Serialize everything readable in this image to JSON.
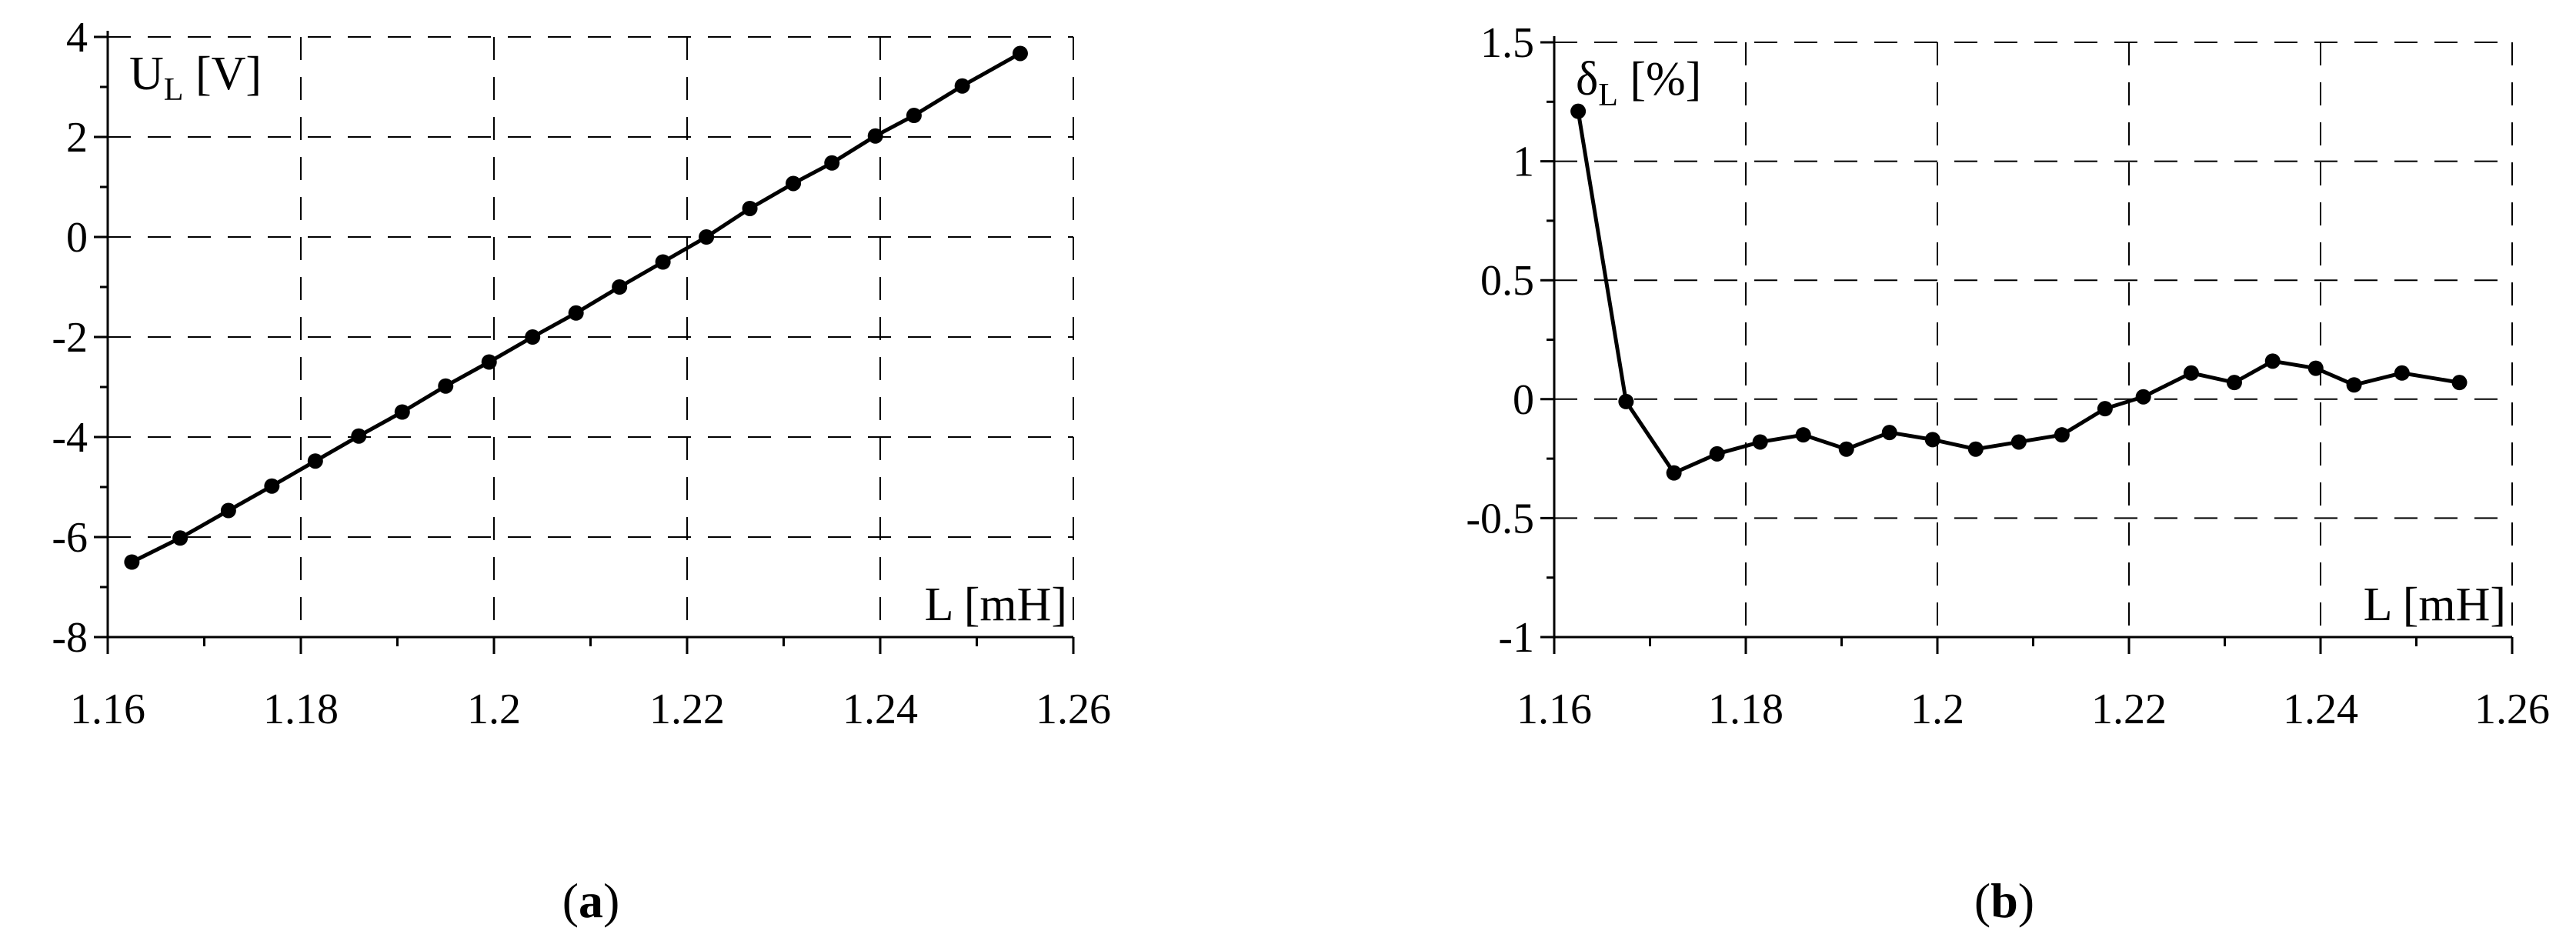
{
  "chart_data": [
    {
      "type": "line",
      "caption_letter": "a",
      "ylabel_main": "U",
      "ylabel_sub": "L",
      "ylabel_unit": " [V]",
      "xlabel": "L [mH]",
      "xlim": [
        1.16,
        1.26
      ],
      "ylim": [
        -8,
        4
      ],
      "xticks": [
        "1.16",
        "1.18",
        "1.2",
        "1.22",
        "1.24",
        "1.26"
      ],
      "yticks": [
        "4",
        "2",
        "0",
        "-2",
        "-4",
        "-6",
        "-8"
      ],
      "grid": true,
      "x": [
        1.1625,
        1.1675,
        1.1725,
        1.177,
        1.1815,
        1.186,
        1.1905,
        1.195,
        1.1995,
        1.204,
        1.2085,
        1.213,
        1.2175,
        1.222,
        1.2265,
        1.231,
        1.235,
        1.2395,
        1.2435,
        1.2485,
        1.2545
      ],
      "values": [
        -6.5,
        -6.02,
        -5.47,
        -4.98,
        -4.48,
        -3.98,
        -3.5,
        -2.98,
        -2.5,
        -2.0,
        -1.52,
        -1.0,
        -0.5,
        0.0,
        0.57,
        1.07,
        1.48,
        2.02,
        2.43,
        3.02,
        3.67
      ]
    },
    {
      "type": "line",
      "caption_letter": "b",
      "ylabel_main": "δ",
      "ylabel_sub": "L",
      "ylabel_unit": " [%]",
      "xlabel": "L [mH]",
      "xlim": [
        1.16,
        1.26
      ],
      "ylim": [
        -1,
        1.5
      ],
      "xticks": [
        "1.16",
        "1.18",
        "1.2",
        "1.22",
        "1.24",
        "1.26"
      ],
      "yticks": [
        "1.5",
        "1",
        "0.5",
        "0",
        "-0.5",
        "-1"
      ],
      "grid": true,
      "x": [
        1.1625,
        1.1675,
        1.1725,
        1.177,
        1.1815,
        1.186,
        1.1905,
        1.195,
        1.1995,
        1.204,
        1.2085,
        1.213,
        1.2175,
        1.2215,
        1.2265,
        1.231,
        1.235,
        1.2395,
        1.2435,
        1.2485,
        1.2545
      ],
      "values": [
        1.21,
        -0.01,
        -0.31,
        -0.23,
        -0.18,
        -0.15,
        -0.21,
        -0.14,
        -0.17,
        -0.21,
        -0.18,
        -0.15,
        -0.04,
        0.01,
        0.11,
        0.07,
        0.16,
        0.13,
        0.06,
        0.11,
        0.07
      ]
    }
  ]
}
